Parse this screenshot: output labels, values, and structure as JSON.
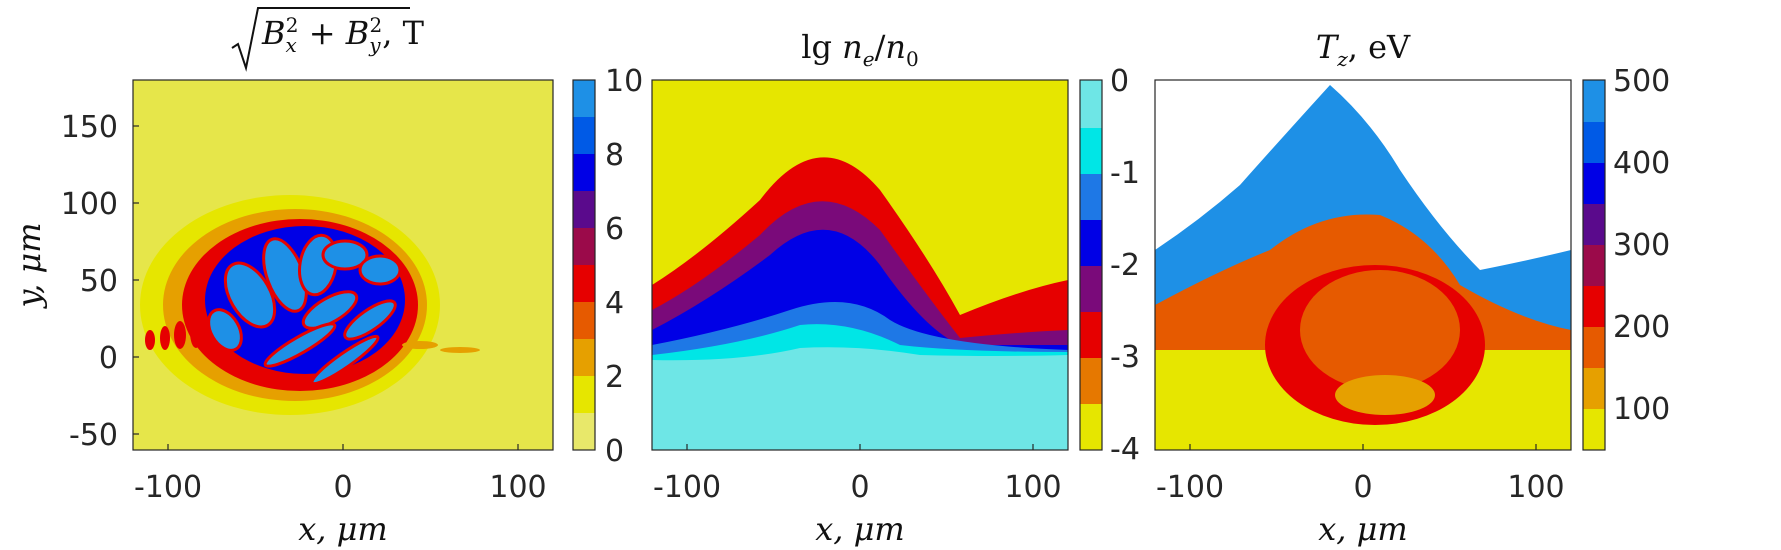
{
  "chart_data": [
    {
      "type": "heatmap",
      "title": "√(Bx² + By²), T",
      "title_parts": {
        "math_base": "B",
        "x_sub": "x",
        "y_sub": "y",
        "sup": "2",
        "plus": "+",
        "comma_unit": ", T"
      },
      "xlabel": "x, μm",
      "ylabel": "y, μm",
      "xlim": [
        -120,
        120
      ],
      "ylim": [
        -60,
        180
      ],
      "xticks": [
        -100,
        0,
        100
      ],
      "yticks": [
        -50,
        0,
        50,
        100,
        150
      ],
      "colorbar": {
        "min": 0,
        "max": 10,
        "ticks": [
          0,
          2,
          4,
          6,
          8,
          10
        ],
        "colors": [
          "#e8e86a",
          "#e6e600",
          "#e6a000",
          "#e65a00",
          "#e60000",
          "#9b0a4a",
          "#5a0a8c",
          "#0000e6",
          "#005ae6",
          "#1e90e6"
        ]
      },
      "background_color": "#e6e64a"
    },
    {
      "type": "heatmap",
      "title": "lg ne/n0",
      "title_parts": {
        "lg": "lg",
        "n": "n",
        "e": "e",
        "slash": "/",
        "zero": "0"
      },
      "xlabel": "x, μm",
      "xlim": [
        -120,
        120
      ],
      "ylim": [
        -60,
        180
      ],
      "xticks": [
        -100,
        0,
        100
      ],
      "colorbar": {
        "min": -4,
        "max": 0,
        "ticks": [
          0,
          -1,
          -2,
          -3,
          -4
        ],
        "colors": [
          "#e6e600",
          "#e67800",
          "#e60000",
          "#7a0a7a",
          "#0000e6",
          "#1e78e6",
          "#00e6e6",
          "#6ee6e6"
        ]
      },
      "background_color": "#e6e600"
    },
    {
      "type": "heatmap",
      "title": "Tz, eV",
      "title_parts": {
        "T": "T",
        "z": "z",
        "unit": ", eV"
      },
      "xlabel": "x, μm",
      "xlim": [
        -120,
        120
      ],
      "ylim": [
        -60,
        180
      ],
      "xticks": [
        -100,
        0,
        100
      ],
      "colorbar": {
        "min": 50,
        "max": 500,
        "ticks": [
          100,
          200,
          300,
          400,
          500
        ],
        "colors": [
          "#e6e600",
          "#e6a000",
          "#e65a00",
          "#e60000",
          "#9b0a4a",
          "#5a0a8c",
          "#0000e6",
          "#005ae6",
          "#1e90e6"
        ]
      },
      "background_color": "#ffffff"
    }
  ]
}
